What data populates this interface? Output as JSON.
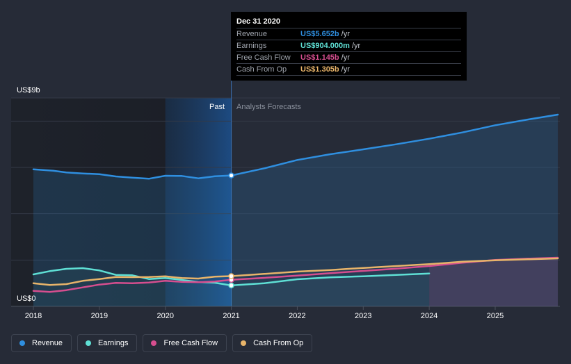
{
  "chart_data": {
    "type": "line",
    "y_axis_top_label": "US$9b",
    "y_axis_bottom_label": "US$0",
    "ylim": [
      0,
      9
    ],
    "xlim": [
      2017.85,
      2025.95
    ],
    "past_label": "Past",
    "forecast_label": "Analysts Forecasts",
    "highlight_start": 2020.0,
    "divider_x": 2021.0,
    "x_ticks": [
      2018,
      2019,
      2020,
      2021,
      2022,
      2023,
      2024,
      2025
    ],
    "x_tick_labels": [
      "2018",
      "2019",
      "2020",
      "2021",
      "2022",
      "2023",
      "2024",
      "2025"
    ],
    "series": [
      {
        "name": "Revenue",
        "color": "#2f8fe0",
        "x": [
          2018.0,
          2018.3,
          2018.5,
          2018.75,
          2019.0,
          2019.25,
          2019.5,
          2019.75,
          2020.0,
          2020.25,
          2020.5,
          2020.75,
          2021.0,
          2021.5,
          2022.0,
          2022.5,
          2023.0,
          2023.5,
          2024.0,
          2024.5,
          2025.0,
          2025.5,
          2025.95
        ],
        "values": [
          5.92,
          5.86,
          5.78,
          5.74,
          5.71,
          5.61,
          5.56,
          5.51,
          5.64,
          5.63,
          5.53,
          5.62,
          5.652,
          5.96,
          6.32,
          6.57,
          6.78,
          7.0,
          7.24,
          7.51,
          7.82,
          8.07,
          8.28
        ]
      },
      {
        "name": "Earnings",
        "color": "#5fe0d5",
        "x": [
          2018.0,
          2018.25,
          2018.5,
          2018.75,
          2019.0,
          2019.25,
          2019.5,
          2019.75,
          2020.0,
          2020.25,
          2020.5,
          2020.75,
          2021.0,
          2021.5,
          2022.0,
          2022.5,
          2023.0,
          2023.5,
          2024.0
        ],
        "values": [
          1.38,
          1.52,
          1.62,
          1.65,
          1.55,
          1.36,
          1.34,
          1.18,
          1.22,
          1.14,
          1.05,
          1.02,
          0.904,
          1.0,
          1.17,
          1.25,
          1.3,
          1.36,
          1.42
        ]
      },
      {
        "name": "Free Cash Flow",
        "color": "#d64e8f",
        "x": [
          2018.0,
          2018.25,
          2018.5,
          2018.75,
          2019.0,
          2019.25,
          2019.5,
          2019.75,
          2020.0,
          2020.25,
          2020.5,
          2020.75,
          2021.0,
          2021.5,
          2022.0,
          2022.5,
          2023.0,
          2023.5,
          2024.0,
          2024.5,
          2025.0,
          2025.5,
          2025.95
        ],
        "values": [
          0.67,
          0.62,
          0.7,
          0.82,
          0.94,
          1.01,
          1.0,
          1.03,
          1.1,
          1.06,
          1.04,
          1.07,
          1.145,
          1.23,
          1.33,
          1.43,
          1.53,
          1.63,
          1.74,
          1.88,
          2.0,
          2.06,
          2.1
        ]
      },
      {
        "name": "Cash From Op",
        "color": "#e8b46a",
        "x": [
          2018.0,
          2018.25,
          2018.5,
          2018.75,
          2019.0,
          2019.25,
          2019.5,
          2019.75,
          2020.0,
          2020.25,
          2020.5,
          2020.75,
          2021.0,
          2021.5,
          2022.0,
          2022.5,
          2023.0,
          2023.5,
          2024.0,
          2024.5,
          2025.0,
          2025.5,
          2025.95
        ],
        "values": [
          1.0,
          0.92,
          0.96,
          1.1,
          1.18,
          1.27,
          1.26,
          1.27,
          1.3,
          1.22,
          1.2,
          1.28,
          1.305,
          1.4,
          1.5,
          1.57,
          1.66,
          1.74,
          1.82,
          1.93,
          1.99,
          2.03,
          2.07
        ]
      }
    ]
  },
  "tooltip": {
    "date": "Dec 31 2020",
    "rows": [
      {
        "name": "Revenue",
        "value": "US$5.652b",
        "unit": "/yr",
        "color": "#2f8fe0"
      },
      {
        "name": "Earnings",
        "value": "US$904.000m",
        "unit": "/yr",
        "color": "#5fe0d5"
      },
      {
        "name": "Free Cash Flow",
        "value": "US$1.145b",
        "unit": "/yr",
        "color": "#d64e8f"
      },
      {
        "name": "Cash From Op",
        "value": "US$1.305b",
        "unit": "/yr",
        "color": "#e8b46a"
      }
    ]
  },
  "legend": [
    {
      "label": "Revenue",
      "color": "#2f8fe0"
    },
    {
      "label": "Earnings",
      "color": "#5fe0d5"
    },
    {
      "label": "Free Cash Flow",
      "color": "#d64e8f"
    },
    {
      "label": "Cash From Op",
      "color": "#e8b46a"
    }
  ]
}
